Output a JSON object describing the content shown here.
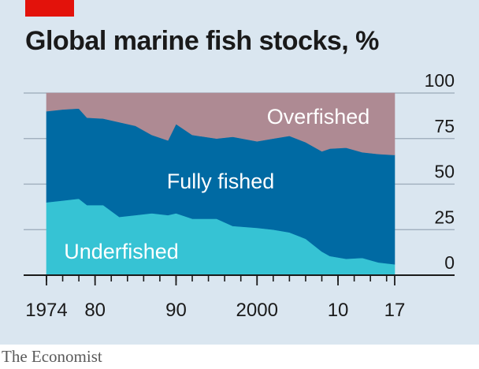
{
  "header": {
    "title": "Global marine fish stocks, %",
    "tag_color": "#e3120b"
  },
  "footer": {
    "source": "The Economist"
  },
  "chart_data": {
    "type": "area",
    "stacked": true,
    "title": "Global marine fish stocks, %",
    "xlabel": "",
    "ylabel": "",
    "x": [
      1974,
      1976,
      1978,
      1979,
      1981,
      1983,
      1985,
      1987,
      1989,
      1990,
      1992,
      1995,
      1997,
      2000,
      2002,
      2004,
      2006,
      2008,
      2009,
      2011,
      2013,
      2015,
      2017
    ],
    "series": [
      {
        "name": "Underfished",
        "color": "#36c3d4",
        "values": [
          40,
          41,
          42,
          38.5,
          38.5,
          32,
          33,
          34,
          33,
          34,
          31,
          31,
          27,
          26,
          25,
          23.5,
          20,
          13,
          10.5,
          9,
          9.5,
          7,
          6
        ]
      },
      {
        "name": "Fully fished",
        "color": "#006aa3",
        "values": [
          50,
          50,
          49.5,
          48,
          47.5,
          52,
          49,
          43,
          41,
          49,
          46,
          44,
          49,
          47.5,
          50,
          53,
          53,
          55,
          59,
          61,
          58,
          59.5,
          60
        ]
      },
      {
        "name": "Overfished",
        "color": "#ae8a93",
        "values": [
          10,
          9,
          8.5,
          13.5,
          14,
          16,
          18,
          23,
          26,
          17,
          23,
          25,
          24,
          26.5,
          25,
          23.5,
          27,
          32,
          30.5,
          30,
          32.5,
          33.5,
          34
        ]
      }
    ],
    "ylim": [
      0,
      100
    ],
    "xlim": [
      1974,
      2017
    ],
    "yticks": [
      "0",
      "25",
      "50",
      "75",
      "100"
    ],
    "ytick_values": [
      0,
      25,
      50,
      75,
      100
    ],
    "xtick_labels": [
      {
        "value": 1974,
        "label": "1974"
      },
      {
        "value": 1980,
        "label": "80"
      },
      {
        "value": 1990,
        "label": "90"
      },
      {
        "value": 2000,
        "label": "2000"
      },
      {
        "value": 2010,
        "label": "10"
      },
      {
        "value": 2017,
        "label": "17"
      }
    ],
    "minor_ticks": [
      1974,
      1976,
      1978,
      1980,
      1982,
      1984,
      1986,
      1988,
      1990,
      1992,
      1994,
      1996,
      1998,
      2000,
      2002,
      2004,
      2006,
      2008,
      2010,
      2012,
      2014,
      2016
    ],
    "grid": true,
    "axis_side": "right",
    "annotations": [
      {
        "text": "Overfished",
        "series": "Overfished"
      },
      {
        "text": "Fully fished",
        "series": "Fully fished"
      },
      {
        "text": "Underfished",
        "series": "Underfished"
      }
    ],
    "gridline_color": "#9aa9b8",
    "axis_color": "#1a1a1a",
    "label_color": "#ffffff"
  }
}
